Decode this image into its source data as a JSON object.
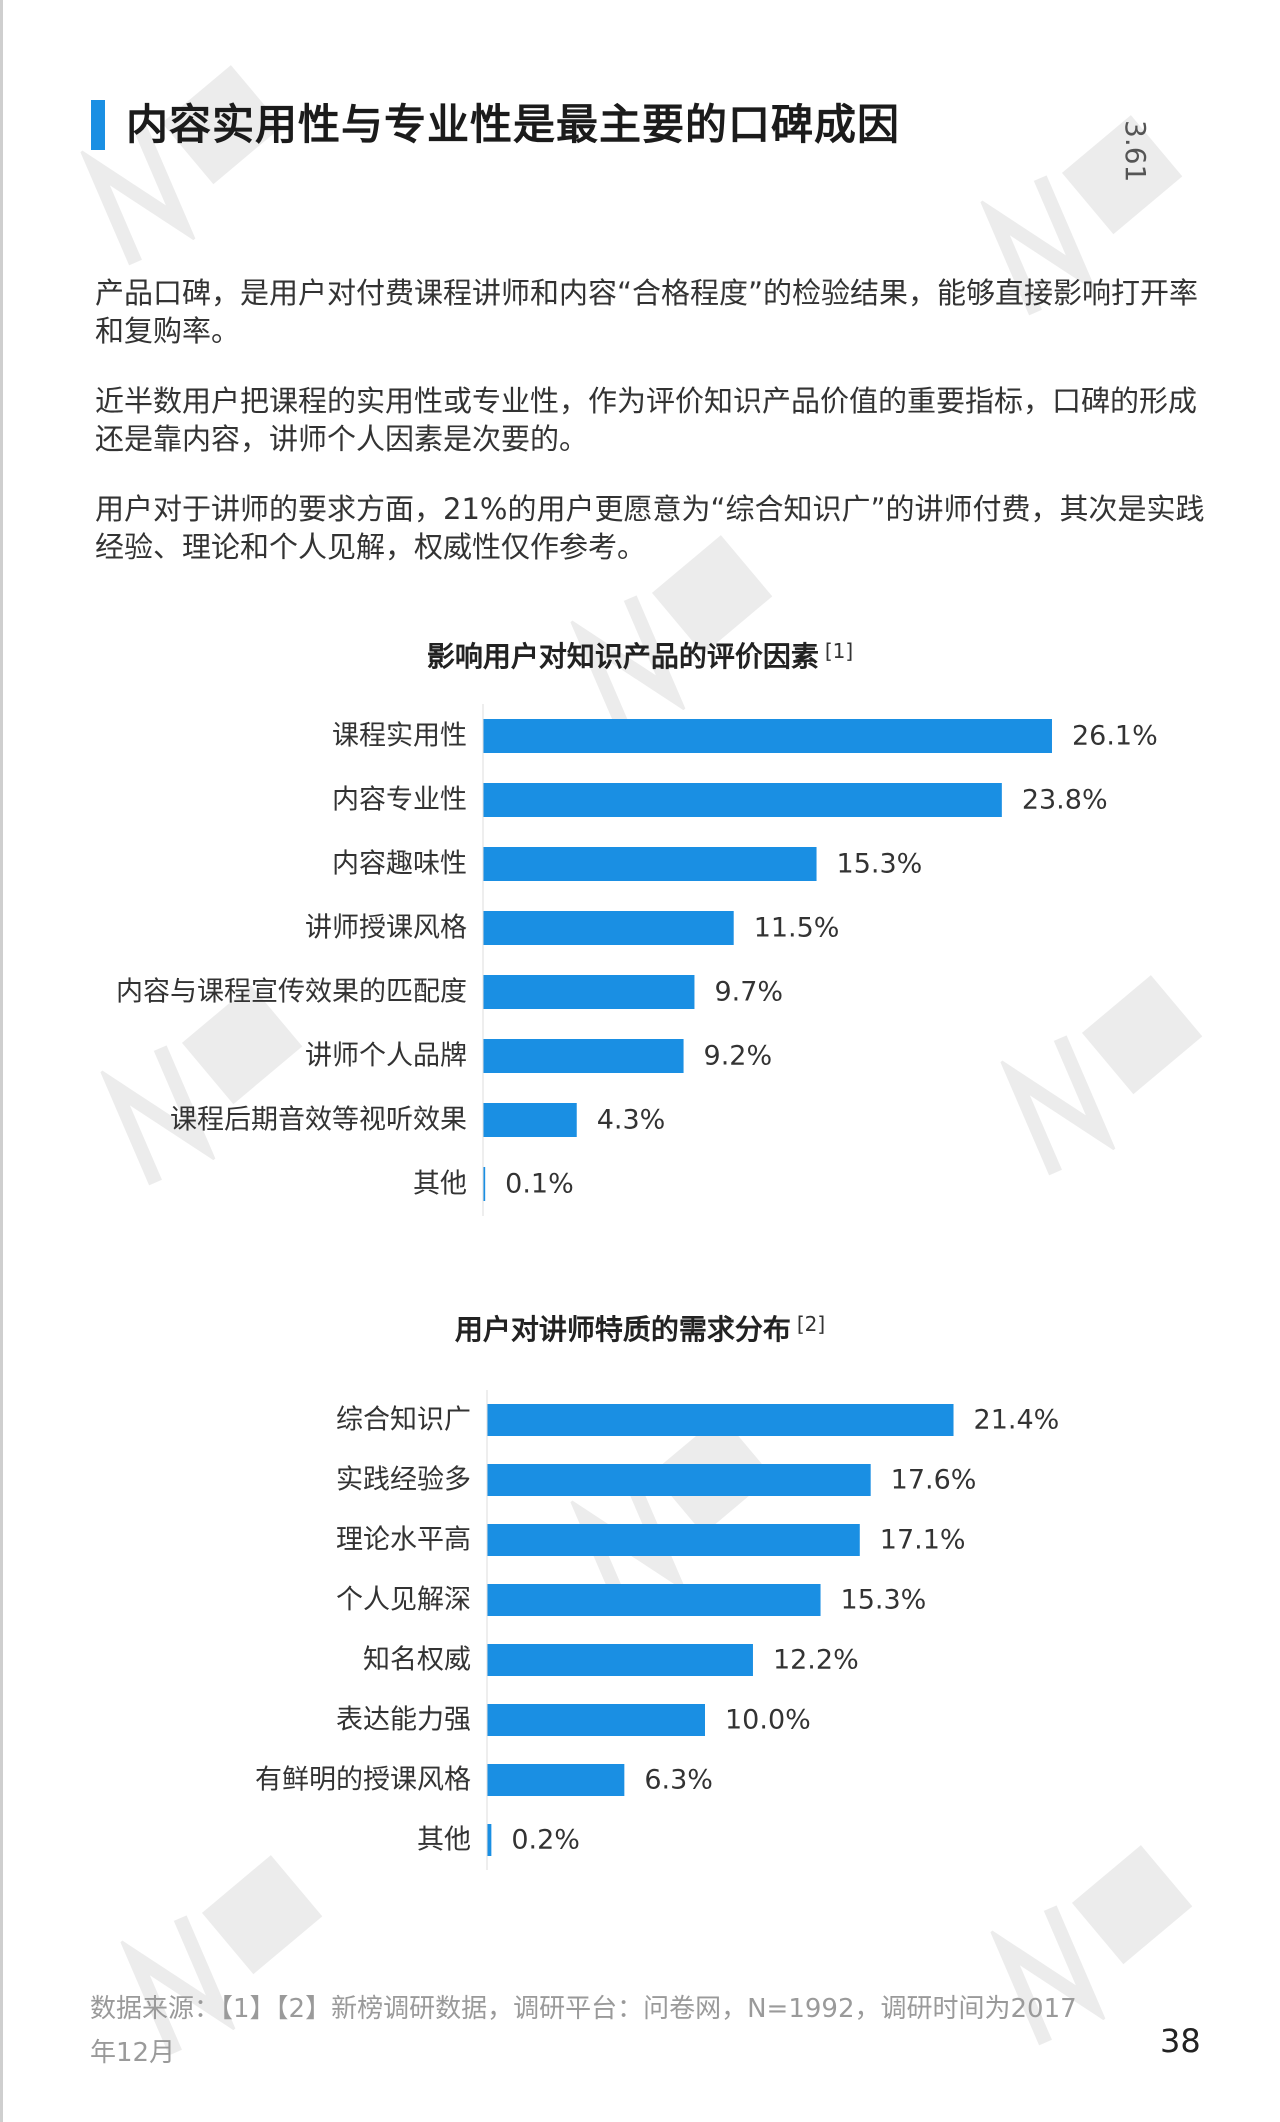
{
  "page": {
    "title": "内容实用性与专业性是最主要的口碑成因",
    "section_number": "3.61",
    "page_number": "38"
  },
  "paragraphs": [
    "产品口碑，是用户对付费课程讲师和内容“合格程度”的检验结果，能够直接影响打开率和复购率。",
    "近半数用户把课程的实用性或专业性，作为评价知识产品价值的重要指标，口碑的形成还是靠内容，讲师个人因素是次要的。",
    "用户对于讲师的要求方面，21%的用户更愿意为“综合知识广”的讲师付费，其次是实践经验、理论和个人见解，权威性仅作参考。"
  ],
  "footer": {
    "source": "数据来源：【1】【2】新榜调研数据，调研平台：问卷网，N=1992，调研时间为2017年12月"
  },
  "colors": {
    "accent": "#1a8fe3",
    "bar": "#1a8fe3"
  },
  "chart_data": [
    {
      "type": "bar",
      "orientation": "horizontal",
      "title": "影响用户对知识产品的评价因素",
      "note": "[1]",
      "unit": "%",
      "categories": [
        "课程实用性",
        "内容专业性",
        "内容趣味性",
        "讲师授课风格",
        "内容与课程宣传效果的匹配度",
        "讲师个人品牌",
        "课程后期音效等视听效果",
        "其他"
      ],
      "values": [
        26.1,
        23.8,
        15.3,
        11.5,
        9.7,
        9.2,
        4.3,
        0.1
      ],
      "labels": [
        "26.1%",
        "23.8%",
        "15.3%",
        "11.5%",
        "9.7%",
        "9.2%",
        "4.3%",
        "0.1%"
      ]
    },
    {
      "type": "bar",
      "orientation": "horizontal",
      "title": "用户对讲师特质的需求分布",
      "note": "[2]",
      "unit": "%",
      "categories": [
        "综合知识广",
        "实践经验多",
        "理论水平高",
        "个人见解深",
        "知名权威",
        "表达能力强",
        "有鲜明的授课风格",
        "其他"
      ],
      "values": [
        21.4,
        17.6,
        17.1,
        15.3,
        12.2,
        10.0,
        6.3,
        0.2
      ],
      "labels": [
        "21.4%",
        "17.6%",
        "17.1%",
        "15.3%",
        "12.2%",
        "10.0%",
        "6.3%",
        "0.2%"
      ]
    }
  ]
}
